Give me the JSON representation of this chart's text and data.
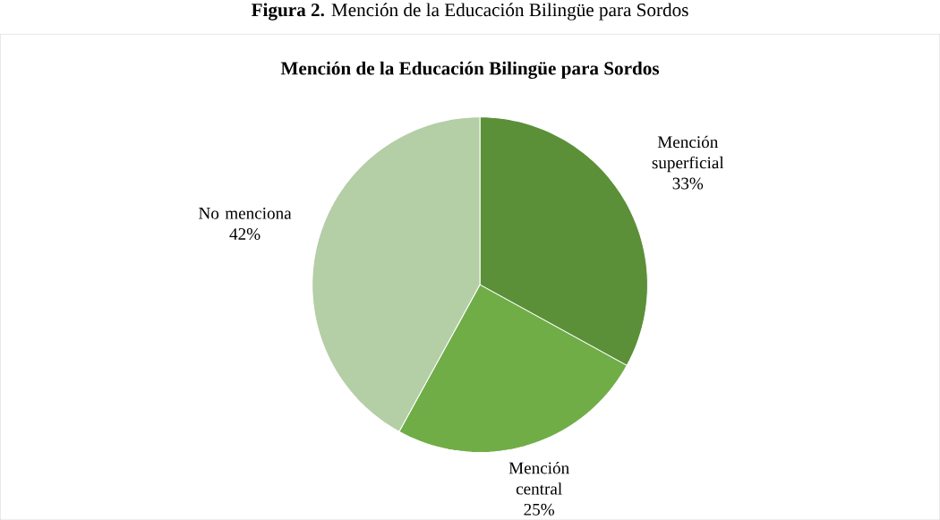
{
  "chart_data": {
    "type": "pie",
    "title": "Mención de la Educación Bilingüe para Sordos",
    "annotations": [
      "**Figura 2.** Mención de la Educación Bilingüe para Sordos"
    ],
    "categories": [
      "Mención superficial",
      "Mención central",
      "No menciona"
    ],
    "values": [
      33,
      25,
      42
    ],
    "value_labels": [
      "33%",
      "25%",
      "42%"
    ],
    "colors": [
      "#5b9039",
      "#70ad47",
      "#b4cea6"
    ]
  }
}
